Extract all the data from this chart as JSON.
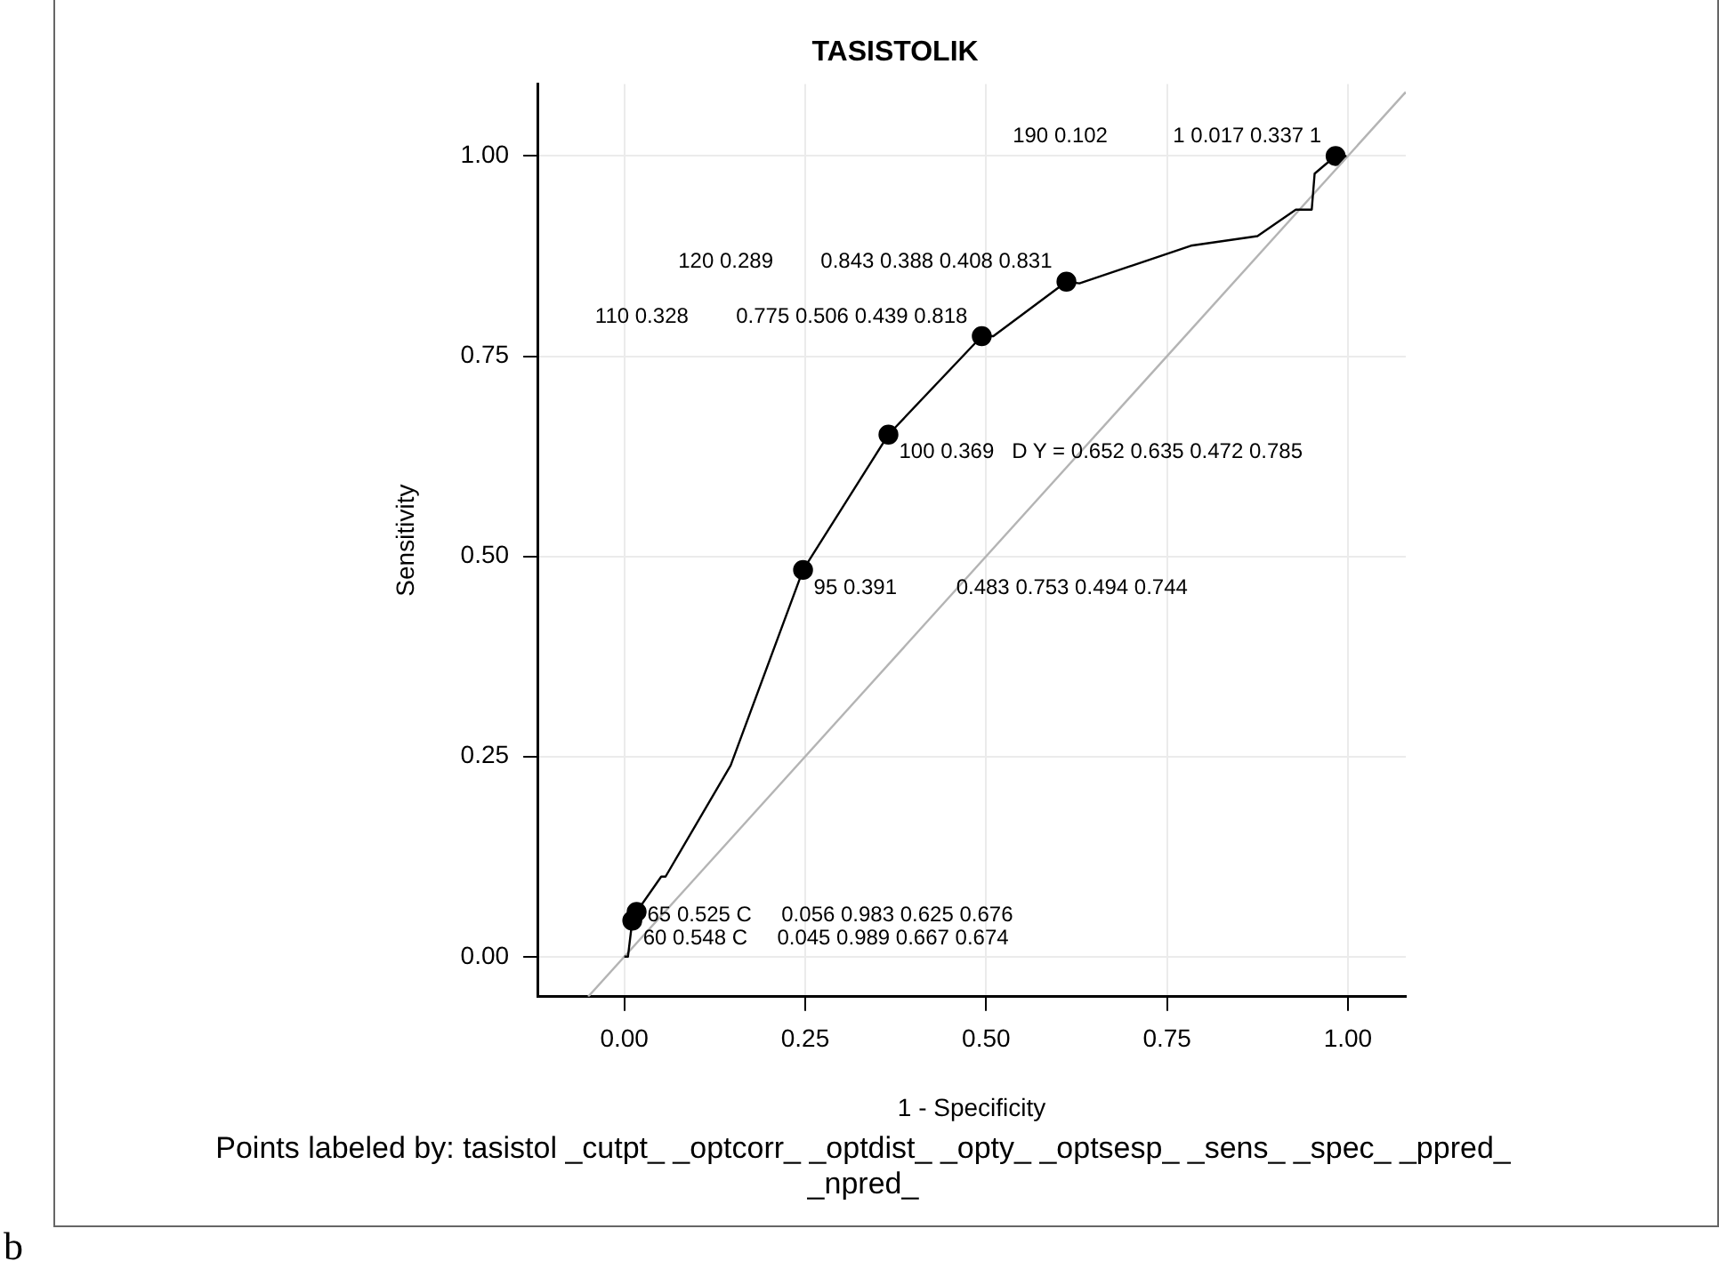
{
  "chart_data": {
    "type": "line",
    "title": "TASISTOLIK",
    "xlabel": "1 - Specificity",
    "ylabel": "Sensitivity",
    "xlim": [
      -0.12,
      1.08
    ],
    "ylim": [
      -0.05,
      1.09
    ],
    "xticks": [
      {
        "value": 0,
        "label": "0.00"
      },
      {
        "value": 0.25,
        "label": "0.25"
      },
      {
        "value": 0.5,
        "label": "0.50"
      },
      {
        "value": 0.75,
        "label": "0.75"
      },
      {
        "value": 1,
        "label": "1.00"
      }
    ],
    "yticks": [
      {
        "value": 0,
        "label": "0.00"
      },
      {
        "value": 0.25,
        "label": "0.25"
      },
      {
        "value": 0.5,
        "label": "0.50"
      },
      {
        "value": 0.75,
        "label": "0.75"
      },
      {
        "value": 1,
        "label": "1.00"
      }
    ],
    "grid": true,
    "legend": false,
    "series": [
      {
        "color": "#000000",
        "marker": "none",
        "x": [
          0,
          0.005,
          0.011,
          0.017,
          0.051,
          0.057,
          0.147,
          0.247,
          0.365,
          0.494,
          0.51,
          0.611,
          0.629,
          0.783,
          0.875,
          0.928,
          0.95,
          0.954,
          0.967,
          0.983,
          0.998
        ],
        "values": [
          0,
          0,
          0.045,
          0.056,
          0.1,
          0.1,
          0.239,
          0.483,
          0.652,
          0.775,
          0.775,
          0.843,
          0.841,
          0.888,
          0.9,
          0.933,
          0.933,
          0.978,
          0.988,
          1,
          1
        ]
      },
      {
        "color": "#b4b4b4",
        "marker": "none",
        "x": [
          -0.05,
          1.08
        ],
        "values": [
          -0.05,
          1.08
        ]
      },
      {
        "type": "scatter",
        "color": "#000000",
        "marker": "circle",
        "x": [
          0.011,
          0.017,
          0.247,
          0.365,
          0.494,
          0.611,
          0.983
        ],
        "values": [
          0.045,
          0.056,
          0.483,
          0.652,
          0.775,
          0.843,
          1
        ]
      }
    ],
    "annotations": [
      {
        "text": "60 0.548 C     0.045 0.989 0.667 0.674",
        "x": 0.011,
        "y": 0.045
      },
      {
        "text": "65 0.525 C     0.056 0.983 0.625 0.676",
        "x": 0.017,
        "y": 0.056
      },
      {
        "text": "95 0.391          0.483 0.753 0.494 0.744",
        "x": 0.247,
        "y": 0.483
      },
      {
        "text": "100 0.369   D Y = 0.652 0.635 0.472 0.785",
        "x": 0.365,
        "y": 0.652
      },
      {
        "text": "110 0.328        0.775 0.506 0.439 0.818",
        "x": 0.494,
        "y": 0.775
      },
      {
        "text": "120 0.289        0.843 0.388 0.408 0.831",
        "x": 0.611,
        "y": 0.843
      },
      {
        "text": "190 0.102           1 0.017 0.337 1",
        "x": 0.983,
        "y": 1
      },
      "Points labeled by: tasistol _cutpt_ _optcorr_ _optdist_ _opty_ _optsesp_ _sens_ _spec_ _ppred_ _npred_",
      "b"
    ]
  }
}
